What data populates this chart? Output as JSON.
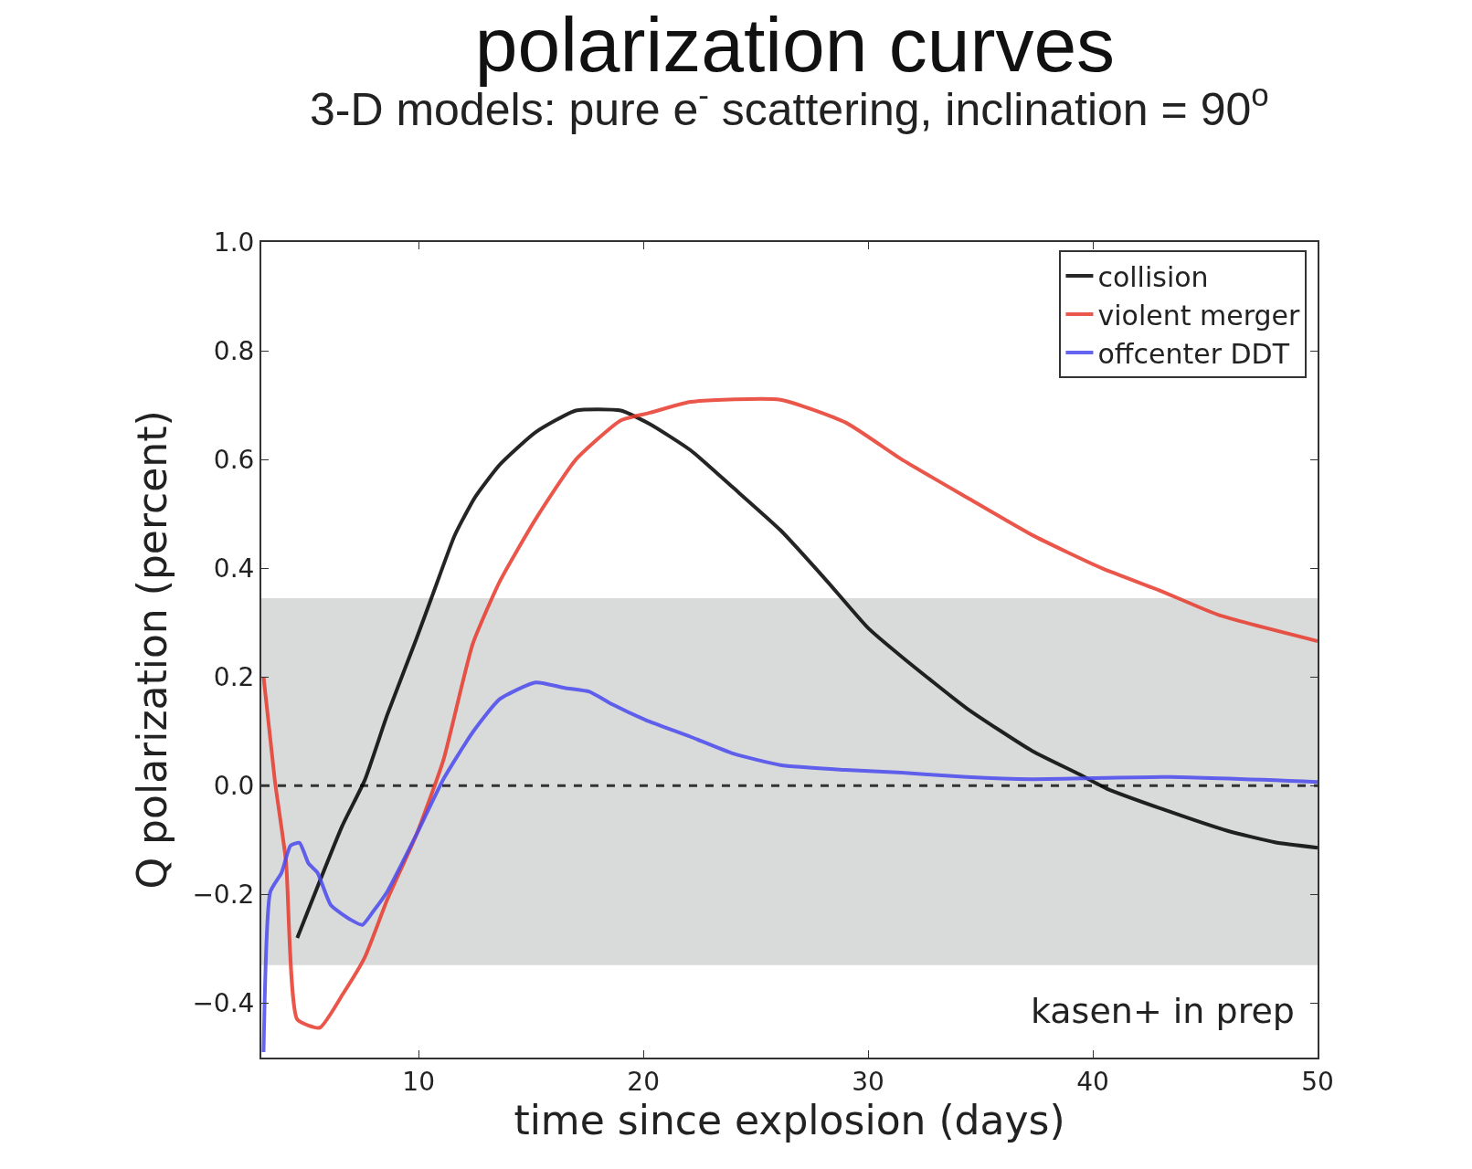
{
  "chart_data": {
    "type": "line",
    "title": "polarization curves",
    "subtitle": "3-D models: pure e$^{-}$ scattering, inclination = 90$^{o}$",
    "xlabel": "time since explosion (days)",
    "ylabel": "Q polarization (percent)",
    "xlim": [
      3,
      50
    ],
    "xticks": [
      10,
      20,
      30,
      40,
      50
    ],
    "ylim": [
      -0.5,
      1.0
    ],
    "yticks": [
      {
        "value": -0.4,
        "label": "−0.4"
      },
      {
        "value": -0.2,
        "label": "−0.2"
      },
      {
        "value": 0.0,
        "label": "0.0"
      },
      {
        "value": 0.2,
        "label": "0.2"
      },
      {
        "value": 0.4,
        "label": "0.4"
      },
      {
        "value": 0.6,
        "label": "0.6"
      },
      {
        "value": 0.8,
        "label": "0.8"
      },
      {
        "value": 1.0,
        "label": "1.0"
      }
    ],
    "grid": false,
    "legend": "top right",
    "marker": "none",
    "line_style": "solid",
    "series": [
      {
        "name": "collision",
        "color": "#000000",
        "x": [
          4.6,
          6.6,
          7.6,
          8.6,
          9.9,
          10.7,
          11.6,
          12.5,
          13.6,
          15.2,
          17,
          19,
          20.3,
          22.1,
          24,
          26.1,
          28.2,
          30,
          31.5,
          34.4,
          37.3,
          39.4,
          40.6,
          43.1,
          46,
          48.1,
          50
        ],
        "values": [
          -0.28,
          -0.074,
          0.01,
          0.13,
          0.27,
          0.36,
          0.46,
          0.53,
          0.59,
          0.65,
          0.69,
          0.69,
          0.665,
          0.617,
          0.548,
          0.47,
          0.375,
          0.29,
          0.237,
          0.142,
          0.064,
          0.021,
          -0.005,
          -0.043,
          -0.083,
          -0.104,
          -0.114
        ]
      },
      {
        "name": "violent merger",
        "color": "#e8392b",
        "x": [
          3.1,
          3.6,
          4.1,
          4.6,
          5.6,
          6.6,
          7.6,
          8.6,
          9.9,
          11.1,
          12.4,
          13.6,
          15.2,
          17,
          19,
          20.3,
          22.1,
          26.1,
          29,
          31.5,
          34.4,
          37.3,
          40.4,
          43.1,
          45.6,
          50
        ],
        "values": [
          0.2,
          0.01,
          -0.14,
          -0.43,
          -0.445,
          -0.385,
          -0.316,
          -0.21,
          -0.09,
          0.047,
          0.26,
          0.375,
          0.49,
          0.6,
          0.672,
          0.686,
          0.706,
          0.71,
          0.668,
          0.6,
          0.53,
          0.461,
          0.4,
          0.357,
          0.314,
          0.266
        ]
      },
      {
        "name": "offcenter DDT",
        "color": "#4a4aee",
        "x": [
          3.1,
          3.4,
          3.9,
          4.3,
          4.7,
          5.1,
          5.5,
          6.1,
          7.0,
          7.5,
          8.0,
          8.6,
          9.9,
          11.1,
          12.4,
          13.6,
          15.2,
          16.5,
          17.6,
          18.6,
          20.1,
          22.1,
          24,
          26.1,
          29,
          31.5,
          34.4,
          37.3,
          43.5,
          50
        ],
        "values": [
          -0.49,
          -0.195,
          -0.16,
          -0.11,
          -0.105,
          -0.143,
          -0.16,
          -0.22,
          -0.247,
          -0.256,
          -0.23,
          -0.195,
          -0.09,
          0.012,
          0.098,
          0.159,
          0.19,
          0.18,
          0.173,
          0.15,
          0.121,
          0.09,
          0.059,
          0.038,
          0.029,
          0.024,
          0.016,
          0.012,
          0.016,
          0.007
        ]
      }
    ],
    "ref_lines": [
      {
        "axis": "y",
        "value": 0.0,
        "color": "#333333",
        "line_style": "dashed"
      }
    ],
    "bands": [
      {
        "axis": "y",
        "from": -0.33,
        "to": 0.345,
        "color": "#d9dbdb"
      }
    ],
    "annotations": [
      "kasen+ in prep"
    ]
  }
}
